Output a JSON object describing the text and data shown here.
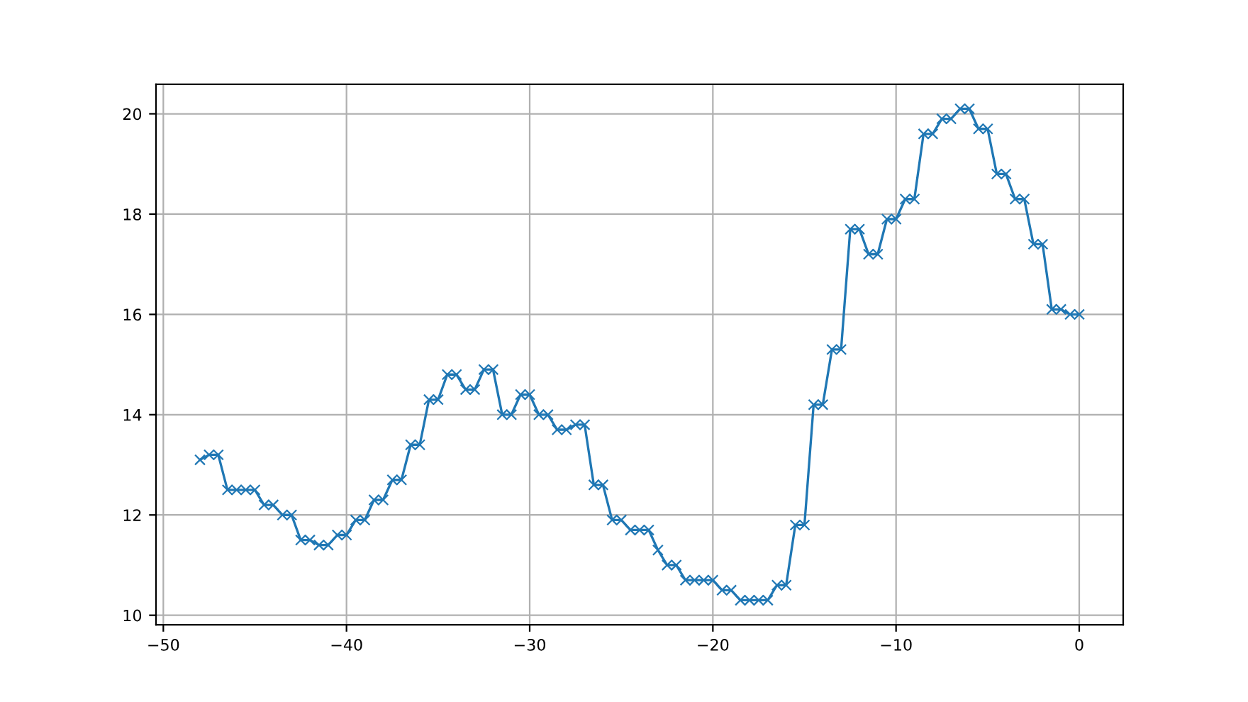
{
  "chart_data": {
    "type": "line",
    "marker": "cross",
    "grid": true,
    "color": "#1f77b4",
    "x": [
      -48,
      -47.5,
      -47,
      -46.5,
      -46,
      -45.5,
      -45,
      -44.5,
      -44,
      -43.5,
      -43,
      -42.5,
      -42,
      -41.5,
      -41,
      -40.5,
      -40,
      -39.5,
      -39,
      -38.5,
      -38,
      -37.5,
      -37,
      -36.5,
      -36,
      -35.5,
      -35,
      -34.5,
      -34,
      -33.5,
      -33,
      -32.5,
      -32,
      -31.5,
      -31,
      -30.5,
      -30,
      -29.5,
      -29,
      -28.5,
      -28,
      -27.5,
      -27,
      -26.5,
      -26,
      -25.5,
      -25,
      -24.5,
      -24,
      -23.5,
      -23,
      -22.5,
      -22,
      -21.5,
      -21,
      -20.5,
      -20,
      -19.5,
      -19,
      -18.5,
      -18,
      -17.5,
      -17,
      -16.5,
      -16,
      -15.5,
      -15,
      -14.5,
      -14,
      -13.5,
      -13,
      -12.5,
      -12,
      -11.5,
      -11,
      -10.5,
      -10,
      -9.5,
      -9,
      -8.5,
      -8,
      -7.5,
      -7,
      -6.5,
      -6,
      -5.5,
      -5,
      -4.5,
      -4,
      -3.5,
      -3,
      -2.5,
      -2,
      -1.5,
      -1,
      -0.5,
      0
    ],
    "values": [
      13.1,
      13.2,
      13.2,
      12.5,
      12.5,
      12.5,
      12.5,
      12.2,
      12.2,
      12.0,
      12.0,
      11.5,
      11.5,
      11.4,
      11.4,
      11.6,
      11.6,
      11.9,
      11.9,
      12.3,
      12.3,
      12.7,
      12.7,
      13.4,
      13.4,
      14.3,
      14.3,
      14.8,
      14.8,
      14.5,
      14.5,
      14.9,
      14.9,
      14.0,
      14.0,
      14.4,
      14.4,
      14.0,
      14.0,
      13.7,
      13.7,
      13.8,
      13.8,
      12.6,
      12.6,
      11.9,
      11.9,
      11.7,
      11.7,
      11.7,
      11.3,
      11.0,
      11.0,
      10.7,
      10.7,
      10.7,
      10.7,
      10.5,
      10.5,
      10.3,
      10.3,
      10.3,
      10.3,
      10.6,
      10.6,
      11.8,
      11.8,
      14.2,
      14.2,
      15.3,
      15.3,
      17.7,
      17.7,
      17.2,
      17.2,
      17.9,
      17.9,
      18.3,
      18.3,
      19.6,
      19.6,
      19.9,
      19.9,
      20.1,
      20.1,
      19.7,
      19.7,
      18.8,
      18.8,
      18.3,
      18.3,
      17.4,
      17.4,
      16.1,
      16.1,
      16.0,
      16.0
    ],
    "xlim": [
      -50.4,
      2.4
    ],
    "ylim": [
      9.81,
      20.59
    ],
    "xticks": [
      {
        "value": -50,
        "label": "−50"
      },
      {
        "value": -40,
        "label": "−40"
      },
      {
        "value": -30,
        "label": "−30"
      },
      {
        "value": -20,
        "label": "−20"
      },
      {
        "value": -10,
        "label": "−10"
      },
      0
    ],
    "yticks": [
      10,
      12,
      14,
      16,
      18,
      20
    ]
  }
}
